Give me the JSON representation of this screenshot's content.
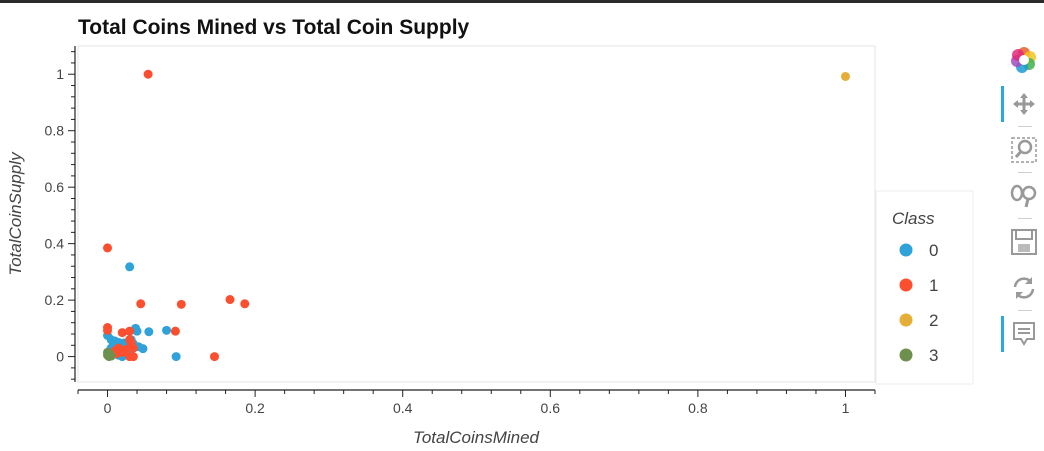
{
  "chart_data": {
    "type": "scatter",
    "title": "Total Coins Mined vs Total Coin Supply",
    "xlabel": "TotalCoinsMined",
    "ylabel": "TotalCoinSupply",
    "xlim": [
      -0.04,
      1.04
    ],
    "ylim": [
      -0.09,
      1.1
    ],
    "xticks": [
      "0",
      "0.2",
      "0.4",
      "0.6",
      "0.8",
      "1"
    ],
    "yticks": [
      "0",
      "0.2",
      "0.4",
      "0.6",
      "0.8",
      "1"
    ],
    "grid": false,
    "legend": {
      "title": "Class",
      "placement": "right"
    },
    "series": [
      {
        "name": "0",
        "color": "#30a2da",
        "points": [
          [
            0.0,
            0.075
          ],
          [
            0.005,
            0.06
          ],
          [
            0.008,
            0.045
          ],
          [
            0.01,
            0.055
          ],
          [
            0.012,
            0.035
          ],
          [
            0.015,
            0.05
          ],
          [
            0.018,
            0.04
          ],
          [
            0.02,
            0.03
          ],
          [
            0.022,
            0.048
          ],
          [
            0.025,
            0.038
          ],
          [
            0.028,
            0.025
          ],
          [
            0.03,
            0.318
          ],
          [
            0.032,
            0.06
          ],
          [
            0.035,
            0.045
          ],
          [
            0.038,
            0.1
          ],
          [
            0.04,
            0.09
          ],
          [
            0.042,
            0.035
          ],
          [
            0.048,
            0.028
          ],
          [
            0.056,
            0.088
          ],
          [
            0.08,
            0.093
          ],
          [
            0.093,
            0.0
          ],
          [
            0.003,
            0.02
          ],
          [
            0.01,
            0.01
          ],
          [
            0.015,
            0.005
          ],
          [
            0.02,
            0.0
          ],
          [
            0.025,
            0.015
          ],
          [
            0.03,
            0.005
          ],
          [
            0.005,
            0.03
          ],
          [
            0.018,
            0.012
          ],
          [
            0.012,
            0.022
          ]
        ]
      },
      {
        "name": "1",
        "color": "#fc4f30",
        "points": [
          [
            0.055,
            1.0
          ],
          [
            0.0,
            0.385
          ],
          [
            0.0,
            0.103
          ],
          [
            0.0,
            0.093
          ],
          [
            0.02,
            0.085
          ],
          [
            0.03,
            0.09
          ],
          [
            0.03,
            0.06
          ],
          [
            0.032,
            0.048
          ],
          [
            0.035,
            0.03
          ],
          [
            0.045,
            0.187
          ],
          [
            0.092,
            0.09
          ],
          [
            0.1,
            0.185
          ],
          [
            0.145,
            0.0
          ],
          [
            0.166,
            0.202
          ],
          [
            0.186,
            0.187
          ],
          [
            0.01,
            0.02
          ],
          [
            0.015,
            0.03
          ],
          [
            0.02,
            0.015
          ],
          [
            0.025,
            0.025
          ],
          [
            0.03,
            0.0
          ],
          [
            0.035,
            0.0
          ],
          [
            0.005,
            0.005
          ],
          [
            0.012,
            0.01
          ]
        ]
      },
      {
        "name": "2",
        "color": "#e5ae38",
        "points": [
          [
            1.0,
            0.992
          ]
        ]
      },
      {
        "name": "3",
        "color": "#6d904f",
        "points": [
          [
            0.0,
            0.015
          ],
          [
            0.0,
            0.005
          ],
          [
            0.002,
            0.0
          ],
          [
            0.003,
            0.01
          ],
          [
            0.005,
            0.002
          ]
        ]
      }
    ]
  },
  "toolbar": {
    "tools": [
      {
        "name": "bokeh-logo-icon",
        "interactable": true,
        "active": false
      },
      {
        "name": "pan-tool-icon",
        "interactable": true,
        "active": true
      },
      {
        "name": "box-zoom-tool-icon",
        "interactable": true,
        "active": false
      },
      {
        "name": "wheel-zoom-tool-icon",
        "interactable": true,
        "active": false
      },
      {
        "name": "save-tool-icon",
        "interactable": true,
        "active": false
      },
      {
        "name": "reset-tool-icon",
        "interactable": true,
        "active": false
      },
      {
        "name": "hover-tool-icon",
        "interactable": true,
        "active": true
      }
    ]
  }
}
